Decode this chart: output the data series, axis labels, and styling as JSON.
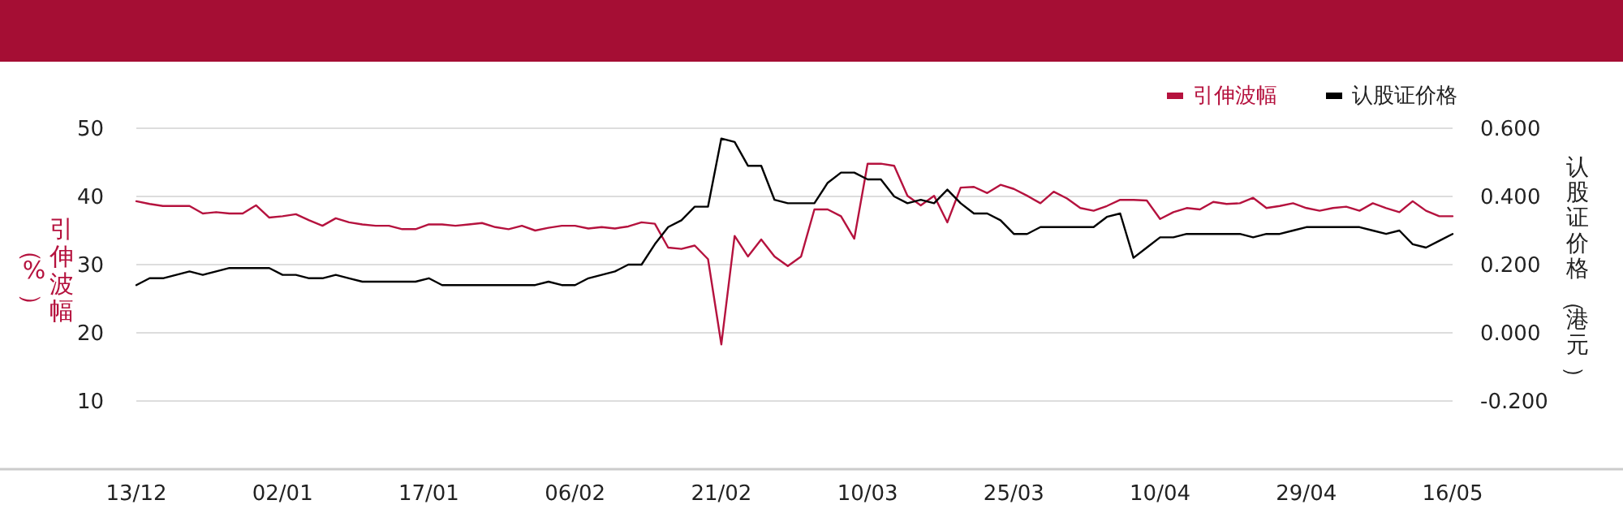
{
  "chart_data": {
    "type": "line",
    "ylabel": "引伸波幅（%）",
    "y2label": "认股证价格（港元）",
    "categories": [
      "13/12",
      null,
      null,
      null,
      null,
      null,
      null,
      null,
      null,
      null,
      null,
      "02/01",
      null,
      null,
      null,
      null,
      null,
      null,
      null,
      null,
      null,
      null,
      "17/01",
      null,
      null,
      null,
      null,
      null,
      null,
      null,
      null,
      null,
      null,
      "06/02",
      null,
      null,
      null,
      null,
      null,
      null,
      null,
      null,
      null,
      null,
      "21/02",
      null,
      null,
      null,
      null,
      null,
      null,
      null,
      null,
      null,
      null,
      "10/03",
      null,
      null,
      null,
      null,
      null,
      null,
      null,
      null,
      null,
      null,
      "25/03",
      null,
      null,
      null,
      null,
      null,
      null,
      null,
      null,
      null,
      null,
      "10/04",
      null,
      null,
      null,
      null,
      null,
      null,
      null,
      null,
      null,
      null,
      "29/04",
      null,
      null,
      null,
      null,
      null,
      null,
      null,
      null,
      null,
      null,
      "16/05"
    ],
    "series": [
      {
        "name": "引伸波幅",
        "color": "#b5123e",
        "values": [
          39.3,
          38.9,
          38.6,
          38.6,
          38.6,
          37.5,
          37.7,
          37.5,
          37.5,
          38.7,
          36.9,
          37.1,
          37.4,
          36.5,
          35.7,
          36.8,
          36.2,
          35.9,
          35.7,
          35.7,
          35.2,
          35.2,
          35.9,
          35.9,
          35.7,
          35.9,
          36.1,
          35.5,
          35.2,
          35.7,
          35.0,
          35.4,
          35.7,
          35.7,
          35.3,
          35.5,
          35.3,
          35.6,
          36.2,
          36.0,
          32.5,
          32.3,
          32.8,
          30.8,
          18.3,
          34.2,
          31.2,
          33.7,
          31.2,
          29.8,
          31.2,
          38.1,
          38.1,
          37.1,
          33.8,
          44.8,
          44.8,
          44.5,
          40.1,
          38.7,
          40.1,
          36.2,
          41.3,
          41.4,
          40.5,
          41.7,
          41.1,
          40.1,
          39.0,
          40.7,
          39.7,
          38.3,
          37.9,
          38.6,
          39.5,
          39.5,
          39.4,
          36.7,
          37.7,
          38.3,
          38.1,
          39.2,
          38.9,
          39.0,
          39.8,
          38.3,
          38.6,
          39.0,
          38.3,
          37.9,
          38.3,
          38.5,
          37.9,
          39.0,
          38.3,
          37.7,
          39.3,
          37.9,
          37.1,
          37.1
        ]
      },
      {
        "name": "认股证价格",
        "color": "#000000",
        "axis": "y2",
        "values": [
          0.14,
          0.16,
          0.16,
          0.17,
          0.18,
          0.17,
          0.18,
          0.19,
          0.19,
          0.19,
          0.19,
          0.17,
          0.17,
          0.16,
          0.16,
          0.17,
          0.16,
          0.15,
          0.15,
          0.15,
          0.15,
          0.15,
          0.16,
          0.14,
          0.14,
          0.14,
          0.14,
          0.14,
          0.14,
          0.14,
          0.14,
          0.15,
          0.14,
          0.14,
          0.16,
          0.17,
          0.18,
          0.2,
          0.2,
          0.26,
          0.31,
          0.33,
          0.37,
          0.37,
          0.57,
          0.56,
          0.49,
          0.49,
          0.39,
          0.38,
          0.38,
          0.38,
          0.44,
          0.47,
          0.47,
          0.45,
          0.45,
          0.4,
          0.38,
          0.39,
          0.38,
          0.42,
          0.38,
          0.35,
          0.35,
          0.33,
          0.29,
          0.29,
          0.31,
          0.31,
          0.31,
          0.31,
          0.31,
          0.34,
          0.35,
          0.22,
          0.25,
          0.28,
          0.28,
          0.29,
          0.29,
          0.29,
          0.29,
          0.29,
          0.28,
          0.29,
          0.29,
          0.3,
          0.31,
          0.31,
          0.31,
          0.31,
          0.31,
          0.3,
          0.29,
          0.3,
          0.26,
          0.25,
          0.27,
          0.29
        ]
      }
    ],
    "ylim": [
      0,
      50
    ],
    "yticks": [
      10,
      20,
      30,
      40,
      50
    ],
    "y2lim": [
      -0.4,
      0.6
    ],
    "y2ticks": [
      {
        "value": 0.6,
        "label": "0.600"
      },
      {
        "value": 0.4,
        "label": "0.400"
      },
      {
        "value": 0.2,
        "label": "0.200"
      },
      {
        "value": 0,
        "label": "0.000"
      },
      {
        "value": -0.2,
        "label": "-0.200"
      }
    ],
    "grid": "y",
    "legend": "top right"
  }
}
